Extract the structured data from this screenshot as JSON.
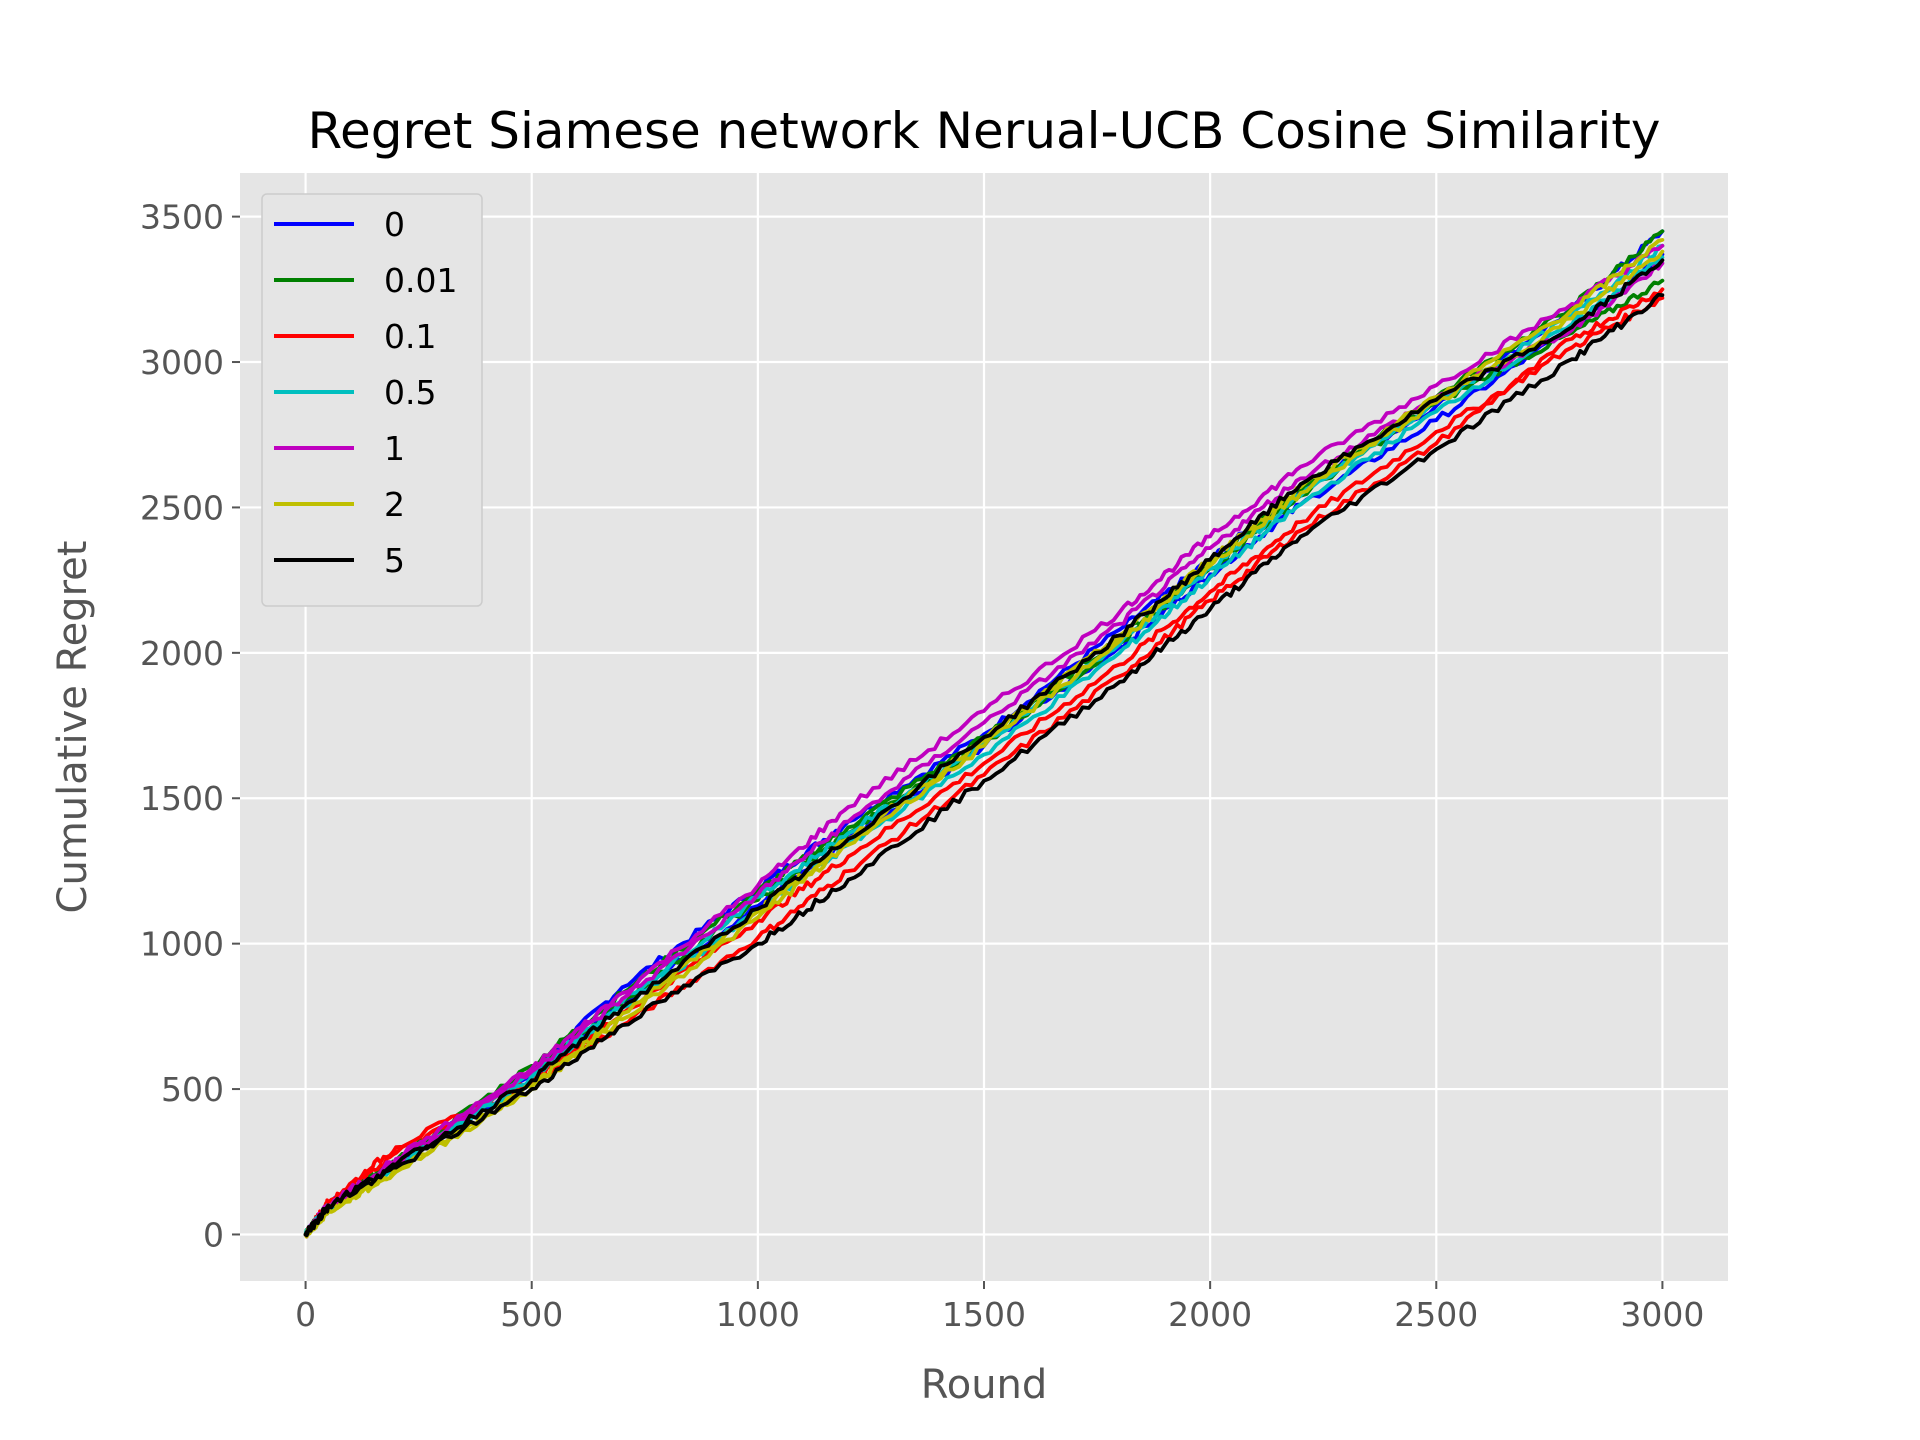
{
  "chart_data": {
    "type": "line",
    "title": "Regret Siamese network Nerual-UCB Cosine Similarity",
    "xlabel": "Round",
    "ylabel": "Cumulative Regret",
    "xlim": [
      -145,
      3145
    ],
    "ylim": [
      -160,
      3650
    ],
    "xticks": [
      0,
      500,
      1000,
      1500,
      2000,
      2500,
      3000
    ],
    "yticks": [
      0,
      500,
      1000,
      1500,
      2000,
      2500,
      3000,
      3500
    ],
    "grid": true,
    "legend_position": "top-left",
    "series": [
      {
        "name": "0",
        "color": "#0000ff",
        "runs": [
          {
            "x": [
              0,
              50,
              200,
              500,
              700,
              1000,
              1200,
              1500,
              1800,
              2000,
              2200,
              2500,
              2800,
              3000
            ],
            "y": [
              0,
              100,
              250,
              560,
              850,
              1190,
              1420,
              1720,
              2080,
              2320,
              2560,
              2850,
              3180,
              3450
            ]
          },
          {
            "x": [
              0,
              50,
              200,
              500,
              700,
              1000,
              1200,
              1500,
              1800,
              2000,
              2200,
              2500,
              2800,
              3000
            ],
            "y": [
              0,
              90,
              240,
              540,
              800,
              1130,
              1360,
              1680,
              2020,
              2270,
              2510,
              2800,
              3120,
              3370
            ]
          }
        ]
      },
      {
        "name": "0.01",
        "color": "#008000",
        "runs": [
          {
            "x": [
              0,
              50,
              200,
              500,
              700,
              1000,
              1200,
              1500,
              1800,
              2000,
              2200,
              2500,
              2800,
              3000
            ],
            "y": [
              0,
              100,
              255,
              580,
              830,
              1180,
              1400,
              1710,
              2050,
              2310,
              2560,
              2880,
              3190,
              3450
            ]
          },
          {
            "x": [
              0,
              50,
              200,
              500,
              700,
              1000,
              1200,
              1500,
              1800,
              2000,
              2200,
              2500,
              2800,
              3000
            ],
            "y": [
              0,
              95,
              245,
              560,
              800,
              1150,
              1380,
              1690,
              2030,
              2290,
              2540,
              2860,
              3100,
              3280
            ]
          }
        ]
      },
      {
        "name": "0.1",
        "color": "#ff0000",
        "runs": [
          {
            "x": [
              0,
              50,
              200,
              500,
              700,
              1000,
              1200,
              1500,
              1800,
              2000,
              2200,
              2500,
              2800,
              3000
            ],
            "y": [
              0,
              110,
              300,
              530,
              760,
              1080,
              1300,
              1620,
              1960,
              2210,
              2450,
              2760,
              3050,
              3220
            ]
          },
          {
            "x": [
              0,
              50,
              200,
              500,
              700,
              1000,
              1200,
              1500,
              1800,
              2000,
              2200,
              2500,
              2800,
              3000
            ],
            "y": [
              0,
              105,
              280,
              520,
              720,
              1020,
              1250,
              1580,
              1920,
              2180,
              2420,
              2720,
              3080,
              3250
            ]
          }
        ]
      },
      {
        "name": "0.5",
        "color": "#00bfbf",
        "runs": [
          {
            "x": [
              0,
              50,
              200,
              500,
              700,
              1000,
              1200,
              1500,
              1800,
              2000,
              2200,
              2500,
              2800,
              3000
            ],
            "y": [
              0,
              95,
              240,
              550,
              800,
              1160,
              1380,
              1690,
              2030,
              2290,
              2540,
              2860,
              3160,
              3400
            ]
          },
          {
            "x": [
              0,
              50,
              200,
              500,
              700,
              1000,
              1200,
              1500,
              1800,
              2000,
              2200,
              2500,
              2800,
              3000
            ],
            "y": [
              0,
              92,
              235,
              540,
              780,
              1110,
              1340,
              1650,
              2000,
              2260,
              2510,
              2830,
              3130,
              3360
            ]
          }
        ]
      },
      {
        "name": "1",
        "color": "#bf00bf",
        "runs": [
          {
            "x": [
              0,
              50,
              200,
              500,
              700,
              1000,
              1200,
              1500,
              1800,
              2000,
              2200,
              2500,
              2800,
              3000
            ],
            "y": [
              0,
              100,
              260,
              570,
              830,
              1200,
              1470,
              1800,
              2140,
              2400,
              2640,
              2920,
              3200,
              3400
            ]
          },
          {
            "x": [
              0,
              50,
              200,
              500,
              700,
              1000,
              1200,
              1500,
              1800,
              2000,
              2200,
              2500,
              2800,
              3000
            ],
            "y": [
              0,
              95,
              250,
              560,
              810,
              1170,
              1420,
              1760,
              2100,
              2360,
              2600,
              2880,
              3110,
              3340
            ]
          }
        ]
      },
      {
        "name": "2",
        "color": "#bfbf00",
        "runs": [
          {
            "x": [
              0,
              50,
              200,
              500,
              700,
              1000,
              1200,
              1500,
              1800,
              2000,
              2200,
              2500,
              2800,
              3000
            ],
            "y": [
              0,
              80,
              220,
              510,
              760,
              1110,
              1360,
              1700,
              2060,
              2320,
              2570,
              2880,
              3180,
              3420
            ]
          },
          {
            "x": [
              0,
              50,
              200,
              500,
              700,
              1000,
              1200,
              1500,
              1800,
              2000,
              2200,
              2500,
              2800,
              3000
            ],
            "y": [
              0,
              78,
              215,
              500,
              740,
              1090,
              1340,
              1680,
              2040,
              2300,
              2550,
              2860,
              3150,
              3380
            ]
          }
        ]
      },
      {
        "name": "5",
        "color": "#000000",
        "runs": [
          {
            "x": [
              0,
              50,
              200,
              500,
              700,
              1000,
              1200,
              1500,
              1800,
              2000,
              2200,
              2500,
              2800,
              3000
            ],
            "y": [
              0,
              100,
              240,
              530,
              780,
              1120,
              1360,
              1710,
              2060,
              2320,
              2580,
              2870,
              3120,
              3350
            ]
          },
          {
            "x": [
              0,
              50,
              200,
              500,
              700,
              1000,
              1200,
              1500,
              1800,
              2000,
              2200,
              2500,
              2800,
              3000
            ],
            "y": [
              0,
              95,
              230,
              500,
              720,
              1000,
              1220,
              1560,
              1900,
              2150,
              2400,
              2700,
              3010,
              3230
            ]
          }
        ]
      }
    ]
  }
}
